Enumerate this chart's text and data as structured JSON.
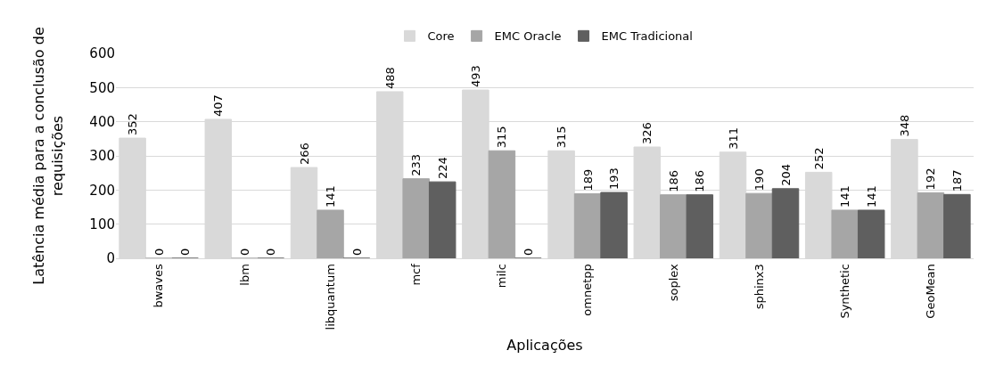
{
  "chart_data": {
    "type": "bar",
    "xlabel": "Aplicações",
    "ylabel": "Latência média para a conclusão de requisições",
    "categories": [
      "bwaves",
      "lbm",
      "libquantum",
      "mcf",
      "milc",
      "omnetpp",
      "soplex",
      "sphinx3",
      "Synthetic",
      "GeoMean"
    ],
    "series": [
      {
        "name": "Core",
        "color": "#d9d9d9",
        "values": [
          352,
          407,
          266,
          488,
          493,
          315,
          326,
          311,
          252,
          348
        ]
      },
      {
        "name": "EMC Oracle",
        "color": "#a6a6a6",
        "values": [
          0,
          0,
          141,
          233,
          315,
          189,
          186,
          190,
          141,
          192
        ]
      },
      {
        "name": "EMC Tradicional",
        "color": "#5f5f5f",
        "values": [
          0,
          0,
          0,
          224,
          0,
          193,
          186,
          204,
          141,
          187
        ]
      }
    ],
    "ylim": [
      0,
      600
    ],
    "yticks": [
      0,
      100,
      200,
      300,
      400,
      500,
      600
    ],
    "grid": "y",
    "legend": "top",
    "data_labels": true
  }
}
